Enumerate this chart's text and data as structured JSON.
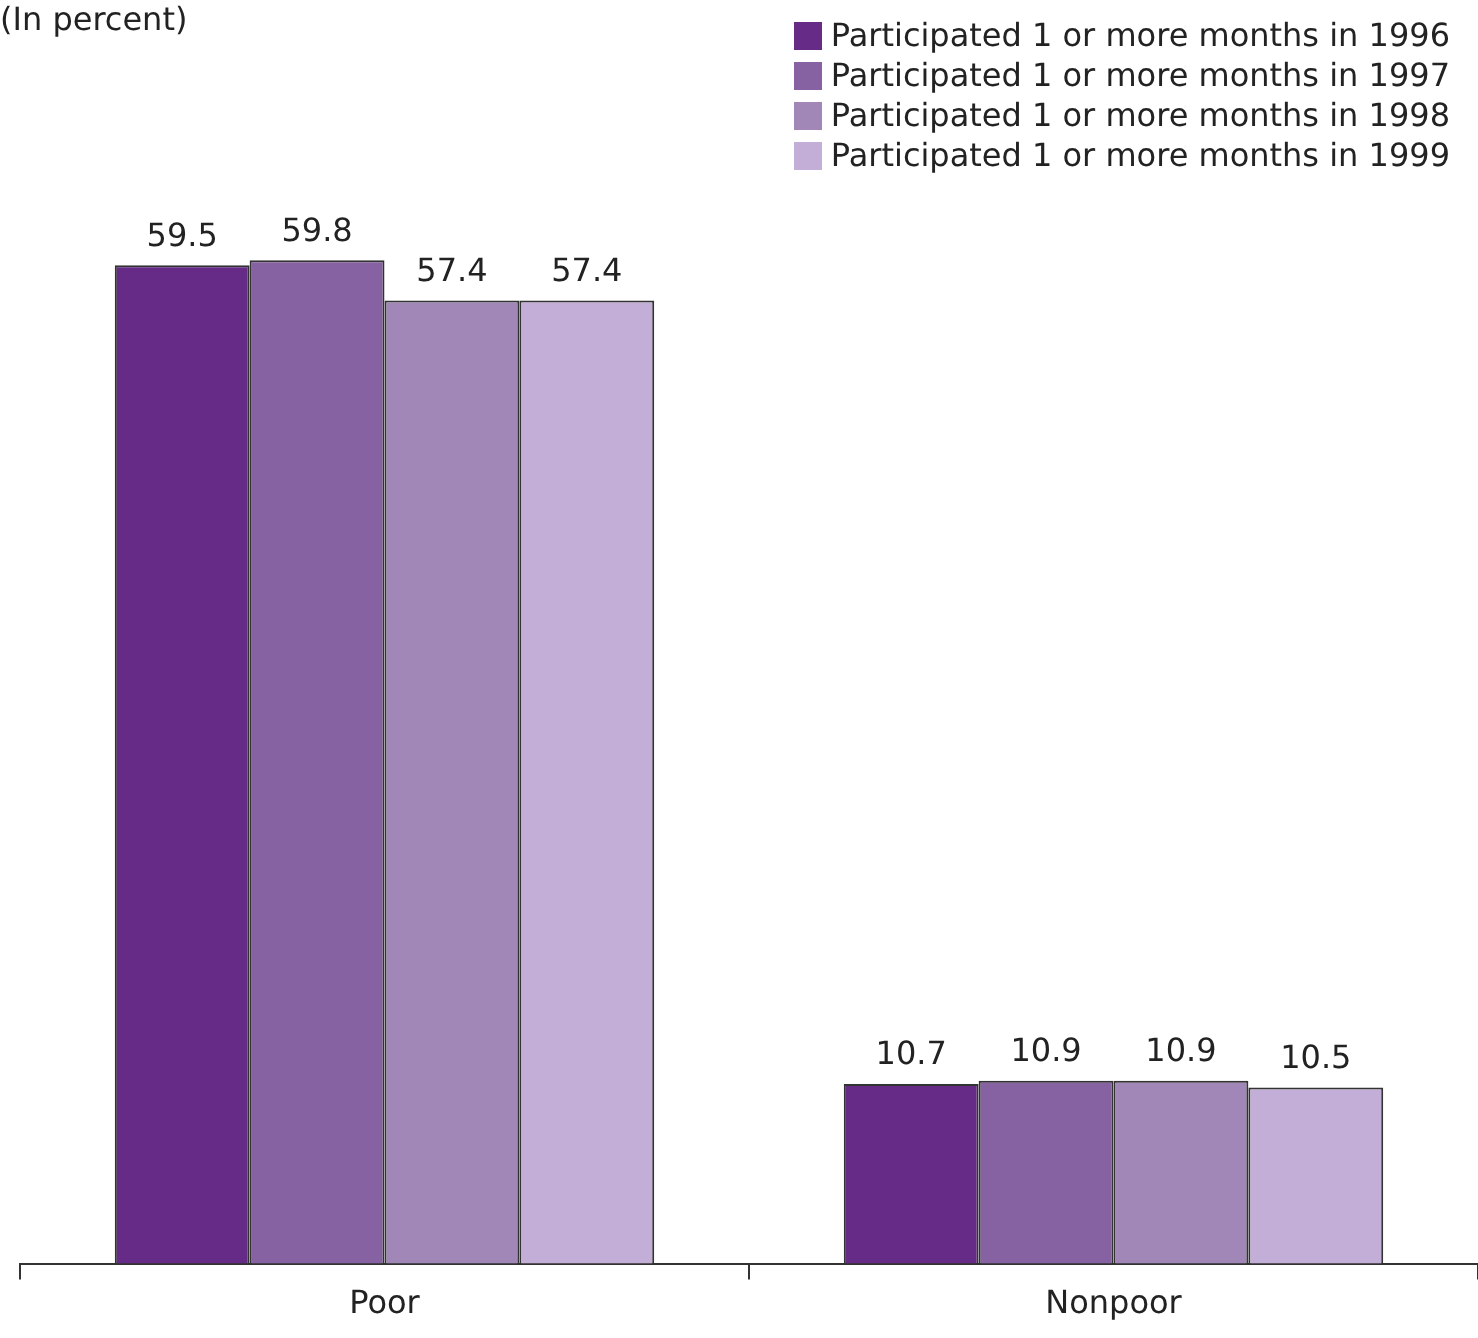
{
  "chart_data": {
    "type": "bar",
    "categories": [
      "Poor",
      "Nonpoor"
    ],
    "series": [
      {
        "name": "Participated 1 or more months in 1996",
        "color": "#652b86",
        "values": [
          59.5,
          10.7
        ]
      },
      {
        "name": "Participated 1 or more months in 1997",
        "color": "#8762a2",
        "values": [
          59.8,
          10.9
        ]
      },
      {
        "name": "Participated 1 or more months in 1998",
        "color": "#a087b8",
        "values": [
          57.4,
          10.9
        ]
      },
      {
        "name": "Participated 1 or more months in 1999",
        "color": "#c2aed6",
        "values": [
          57.4,
          10.5
        ]
      }
    ],
    "annotations": [
      "(In percent)"
    ],
    "data_labels": true,
    "legend": "top right",
    "grid": false
  }
}
